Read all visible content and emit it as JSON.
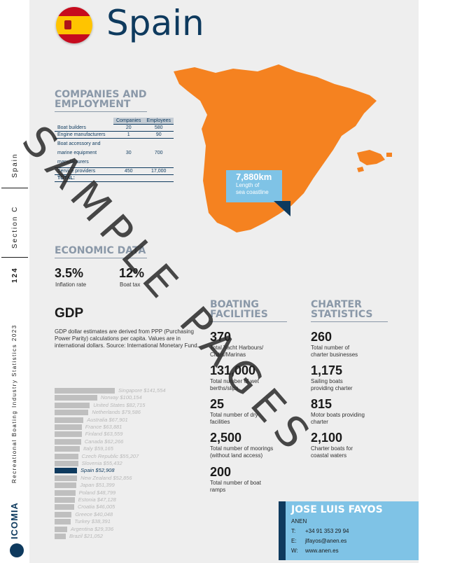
{
  "sidebar": {
    "section_label": "Spain",
    "section_name": "Section C",
    "page_number": "124",
    "publication": "Recreational Boating Industry Statistics 2023",
    "logo_text": "ICOMIA"
  },
  "header": {
    "title": "Spain"
  },
  "companies": {
    "title_line1": "COMPANIES AND",
    "title_line2": "EMPLOYMENT",
    "columns": [
      "Companies",
      "Employees"
    ],
    "rows": [
      {
        "label": "Boat builders",
        "companies": "20",
        "employees": "580"
      },
      {
        "label": "Engine manufacturers",
        "companies": "1",
        "employees": "90"
      },
      {
        "label_lines": [
          "Boat accessory and",
          "marine equipment",
          "manufacturers"
        ],
        "companies": "30",
        "employees": "700"
      },
      {
        "label": "Service providers",
        "companies": "450",
        "employees": "17,000"
      }
    ],
    "total_label": "TOTAL:"
  },
  "map": {
    "coastline_value": "7,880km",
    "coastline_label_line1": "Length of",
    "coastline_label_line2": "sea coastline",
    "colors": {
      "land": "#f58220",
      "callout": "#7fc3e6",
      "dark": "#0e3a5e"
    }
  },
  "economic": {
    "title": "ECONOMIC DATA",
    "inflation_value": "3.5%",
    "inflation_label": "Inflation rate",
    "tax_value": "12%",
    "tax_label": "Boat tax"
  },
  "gdp": {
    "title": "GDP",
    "description": "GDP dollar estimates are derived from PPP (Purchasing Power Parity) calculations per capita. Values are in international dollars. Source: International Monetary Fund.",
    "highlight": "Spain",
    "countries": [
      {
        "name": "Singapore",
        "label": "Singapore $141,554",
        "value": 141554
      },
      {
        "name": "Norway",
        "label": "Norway $100,154",
        "value": 100154
      },
      {
        "name": "United States",
        "label": "United States $82,715",
        "value": 82715
      },
      {
        "name": "Netherlands",
        "label": "Netherlands $79,586",
        "value": 79586
      },
      {
        "name": "Australia",
        "label": "Australia $67,901",
        "value": 67901
      },
      {
        "name": "France",
        "label": "France $63,881",
        "value": 63881
      },
      {
        "name": "Finland",
        "label": "Finland $63,559",
        "value": 63559
      },
      {
        "name": "Canada",
        "label": "Canada $62,266",
        "value": 62266
      },
      {
        "name": "Italy",
        "label": "Italy $59,165",
        "value": 59165
      },
      {
        "name": "Czech Republic",
        "label": "Czech Republic $55,207",
        "value": 55207
      },
      {
        "name": "Slovenia",
        "label": "Slovenia $55,432",
        "value": 55432
      },
      {
        "name": "Spain",
        "label": "Spain $52,908",
        "value": 52908
      },
      {
        "name": "New Zealand",
        "label": "New Zealand $52,856",
        "value": 52856
      },
      {
        "name": "Japan",
        "label": "Japan $51,399",
        "value": 51399
      },
      {
        "name": "Poland",
        "label": "Poland $48,799",
        "value": 48799
      },
      {
        "name": "Estonia",
        "label": "Estonia $47,128",
        "value": 47128
      },
      {
        "name": "Croatia",
        "label": "Croatia $46,005",
        "value": 46005
      },
      {
        "name": "Greece",
        "label": "Greece $40,048",
        "value": 40048
      },
      {
        "name": "Turkey",
        "label": "Turkey $38,391",
        "value": 38391
      },
      {
        "name": "Argentina",
        "label": "Argentina $29,336",
        "value": 29336
      },
      {
        "name": "Brazil",
        "label": "Brazil $21,052",
        "value": 21052
      }
    ]
  },
  "boating": {
    "title_line1": "BOATING",
    "title_line2": "FACILITIES",
    "items": [
      {
        "value": "370",
        "label": "Total Yacht Harbours/ Clubs/Marinas"
      },
      {
        "value": "131,000",
        "label": "Total number of wet berths/slips"
      },
      {
        "value": "25",
        "label": "Total number of dry facilities"
      },
      {
        "value": "2,500",
        "label": "Total number of moorings (without land access)"
      },
      {
        "value": "200",
        "label": "Total number of boat ramps"
      }
    ]
  },
  "charter": {
    "title_line1": "CHARTER",
    "title_line2": "STATISTICS",
    "items": [
      {
        "value": "260",
        "label": "Total number of charter businesses"
      },
      {
        "value": "1,175",
        "label": "Sailing boats providing charter"
      },
      {
        "value": "815",
        "label": "Motor boats providing charter"
      },
      {
        "value": "2,100",
        "label": "Charter boats for coastal waters"
      }
    ]
  },
  "contact": {
    "name": "JOSE LUIS FAYOS",
    "org": "ANEN",
    "tel_key": "T:",
    "tel": "+34 91 353 29 94",
    "email_key": "E:",
    "email": "jlfayos@anen.es",
    "web_key": "W:",
    "web": "www.anen.es"
  },
  "watermark": "SAMPLE PAGES"
}
